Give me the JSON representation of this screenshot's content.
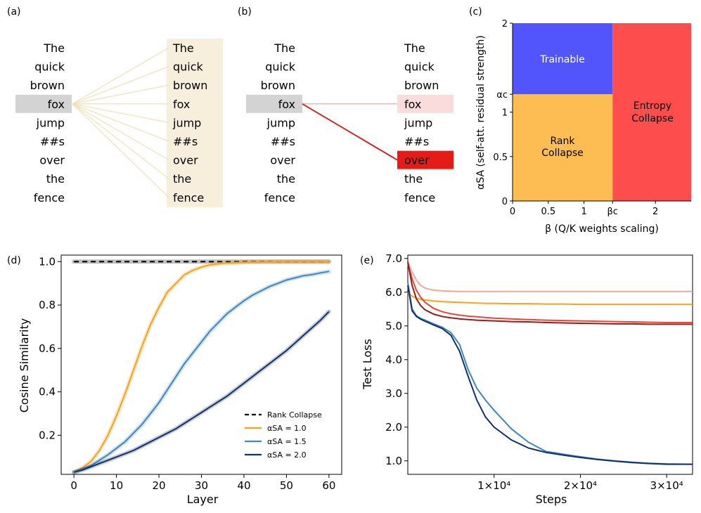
{
  "panel_labels": {
    "a": "(a)",
    "b": "(b)",
    "c": "(c)",
    "d": "(d)",
    "e": "(e)"
  },
  "tokens": [
    "The",
    "quick",
    "brown",
    "fox",
    "jump",
    "##s",
    "over",
    "the",
    "fence"
  ],
  "panel_a": {
    "query_index": 3,
    "attention": [
      0.12,
      0.12,
      0.12,
      0.13,
      0.11,
      0.11,
      0.11,
      0.11,
      0.12
    ]
  },
  "panel_b": {
    "query_index": 3,
    "attention": [
      0.0,
      0.0,
      0.0,
      0.12,
      0.0,
      0.0,
      0.92,
      0.0,
      0.0
    ]
  },
  "colors": {
    "highlight": "#d3d3d3",
    "tan_bg": "#f7efdc",
    "tan_line": "#efdfb6",
    "red_strong": "#e51b17",
    "red_line": "#cc2a27",
    "red_light": "#fbdcdc",
    "trainable": "#5155fb",
    "rank_collapse": "#fdbd52",
    "entropy_collapse": "#fe4d4d",
    "orange": "#fba11b",
    "blue_mid": "#3f86c3",
    "navy": "#13306b"
  },
  "chart_data": [
    {
      "panel": "(c)",
      "type": "heatmap",
      "xlabel": "β (Q/K weights scaling)",
      "ylabel": "αSA (self-att. residual strength)",
      "xlim": [
        0,
        2.5
      ],
      "ylim": [
        0,
        2
      ],
      "x_ticks": [
        "0",
        "0.5",
        "1",
        "βc",
        "2"
      ],
      "x_tick_values": [
        0,
        0.5,
        1,
        1.4,
        2
      ],
      "y_ticks": [
        "0",
        "0.5",
        "1",
        "αc",
        "2"
      ],
      "y_tick_values": [
        0,
        0.5,
        1,
        1.2,
        2
      ],
      "beta_c": 1.4,
      "alpha_c": 1.2,
      "regions": [
        {
          "name": "Trainable",
          "x": [
            0,
            1.4
          ],
          "y": [
            1.2,
            2
          ],
          "color": "#5155fb"
        },
        {
          "name": "Rank Collapse",
          "x": [
            0,
            1.4
          ],
          "y": [
            0,
            1.2
          ],
          "color": "#fdbd52"
        },
        {
          "name": "Entropy Collapse",
          "x": [
            1.4,
            2.5
          ],
          "y": [
            0,
            2
          ],
          "color": "#fe4d4d"
        }
      ],
      "region_labels": {
        "trainable": "Trainable",
        "rank": [
          "Rank",
          "Collapse"
        ],
        "entropy": [
          "Entropy",
          "Collapse"
        ]
      }
    },
    {
      "panel": "(d)",
      "type": "line",
      "xlabel": "Layer",
      "ylabel": "Cosine Similarity",
      "xlim": [
        -3,
        63
      ],
      "ylim": [
        0.02,
        1.03
      ],
      "x_ticks": [
        0,
        10,
        20,
        30,
        40,
        50,
        60
      ],
      "y_ticks": [
        0.2,
        0.4,
        0.6,
        0.8,
        1.0
      ],
      "x": [
        0,
        2,
        4,
        6,
        8,
        10,
        12,
        14,
        16,
        18,
        20,
        22,
        24,
        26,
        28,
        30,
        32,
        34,
        36,
        38,
        40,
        42,
        44,
        46,
        48,
        50,
        52,
        54,
        56,
        58,
        60
      ],
      "series": [
        {
          "name": "Rank Collapse",
          "style": "dashed",
          "color": "#000000",
          "values": [
            1,
            1,
            1,
            1,
            1,
            1,
            1,
            1,
            1,
            1,
            1,
            1,
            1,
            1,
            1,
            1,
            1,
            1,
            1,
            1,
            1,
            1,
            1,
            1,
            1,
            1,
            1,
            1,
            1,
            1,
            1
          ]
        },
        {
          "name": "αSA = 1.0",
          "color": "#fba11b",
          "values": [
            0.03,
            0.05,
            0.08,
            0.13,
            0.2,
            0.29,
            0.39,
            0.5,
            0.61,
            0.71,
            0.79,
            0.86,
            0.9,
            0.94,
            0.96,
            0.975,
            0.985,
            0.99,
            0.993,
            0.995,
            0.997,
            0.998,
            0.999,
            0.999,
            1.0,
            1.0,
            1.0,
            1.0,
            1.0,
            1.0,
            1.0
          ]
        },
        {
          "name": "αSA = 1.5",
          "color": "#3f86c3",
          "values": [
            0.03,
            0.045,
            0.06,
            0.085,
            0.11,
            0.14,
            0.17,
            0.21,
            0.25,
            0.3,
            0.35,
            0.41,
            0.47,
            0.53,
            0.58,
            0.63,
            0.68,
            0.72,
            0.76,
            0.79,
            0.82,
            0.845,
            0.865,
            0.885,
            0.9,
            0.915,
            0.925,
            0.935,
            0.94,
            0.948,
            0.955
          ]
        },
        {
          "name": "αSA = 2.0",
          "color": "#13306b",
          "values": [
            0.03,
            0.04,
            0.055,
            0.07,
            0.085,
            0.1,
            0.115,
            0.13,
            0.15,
            0.17,
            0.19,
            0.21,
            0.23,
            0.255,
            0.28,
            0.305,
            0.33,
            0.355,
            0.38,
            0.41,
            0.44,
            0.47,
            0.5,
            0.53,
            0.56,
            0.59,
            0.625,
            0.66,
            0.695,
            0.73,
            0.77
          ]
        }
      ],
      "legend": {
        "position": "lower-right",
        "entries": [
          "Rank Collapse",
          "αSA = 1.0",
          "αSA = 1.5",
          "αSA = 2.0"
        ]
      }
    },
    {
      "panel": "(e)",
      "type": "line",
      "xlabel": "Steps",
      "ylabel": "Test Loss",
      "xlim": [
        0,
        33000
      ],
      "ylim": [
        0.6,
        7.1
      ],
      "x_ticks": [
        "1×10⁴",
        "2×10⁴",
        "3×10⁴"
      ],
      "x_tick_values": [
        10000,
        20000,
        30000
      ],
      "y_ticks": [
        "1.0",
        "2.0",
        "3.0",
        "4.0",
        "5.0",
        "6.0",
        "7.0"
      ],
      "y_tick_values": [
        1,
        2,
        3,
        4,
        5,
        6,
        7
      ],
      "x": [
        0,
        500,
        1000,
        1500,
        2000,
        3000,
        4000,
        5000,
        6000,
        7000,
        8000,
        9000,
        10000,
        12000,
        14000,
        16000,
        18000,
        20000,
        22000,
        24000,
        26000,
        28000,
        30000,
        33000
      ],
      "series": [
        {
          "color": "#f6a698",
          "values": [
            6.9,
            6.6,
            6.35,
            6.2,
            6.12,
            6.06,
            6.04,
            6.03,
            6.02,
            6.02,
            6.02,
            6.02,
            6.02,
            6.02,
            6.02,
            6.02,
            6.02,
            6.02,
            6.02,
            6.02,
            6.02,
            6.02,
            6.02,
            6.02
          ]
        },
        {
          "color": "#fba11b",
          "values": [
            6.0,
            5.88,
            5.82,
            5.79,
            5.77,
            5.74,
            5.72,
            5.71,
            5.7,
            5.69,
            5.68,
            5.67,
            5.67,
            5.66,
            5.66,
            5.65,
            5.65,
            5.64,
            5.64,
            5.64,
            5.64,
            5.64,
            5.64,
            5.64
          ]
        },
        {
          "color": "#e8473a",
          "values": [
            6.85,
            6.4,
            6.05,
            5.85,
            5.7,
            5.52,
            5.42,
            5.36,
            5.32,
            5.29,
            5.27,
            5.25,
            5.23,
            5.21,
            5.19,
            5.17,
            5.16,
            5.15,
            5.14,
            5.13,
            5.12,
            5.11,
            5.1,
            5.1
          ]
        },
        {
          "color": "#9b1a1a",
          "values": [
            6.9,
            6.2,
            5.8,
            5.6,
            5.48,
            5.35,
            5.28,
            5.24,
            5.21,
            5.19,
            5.17,
            5.16,
            5.15,
            5.13,
            5.12,
            5.1,
            5.09,
            5.08,
            5.07,
            5.06,
            5.06,
            5.05,
            5.05,
            5.05
          ]
        },
        {
          "color": "#3f86c3",
          "values": [
            6.3,
            5.5,
            5.3,
            5.22,
            5.17,
            5.06,
            4.96,
            4.8,
            4.45,
            3.7,
            3.15,
            2.8,
            2.5,
            1.95,
            1.55,
            1.28,
            1.2,
            1.12,
            1.05,
            1.0,
            0.96,
            0.93,
            0.91,
            0.9
          ]
        },
        {
          "color": "#13306b",
          "values": [
            6.2,
            5.45,
            5.28,
            5.2,
            5.14,
            5.03,
            4.92,
            4.72,
            4.25,
            3.5,
            2.8,
            2.3,
            2.0,
            1.62,
            1.38,
            1.25,
            1.17,
            1.1,
            1.04,
            0.99,
            0.95,
            0.92,
            0.9,
            0.9
          ]
        }
      ]
    }
  ]
}
